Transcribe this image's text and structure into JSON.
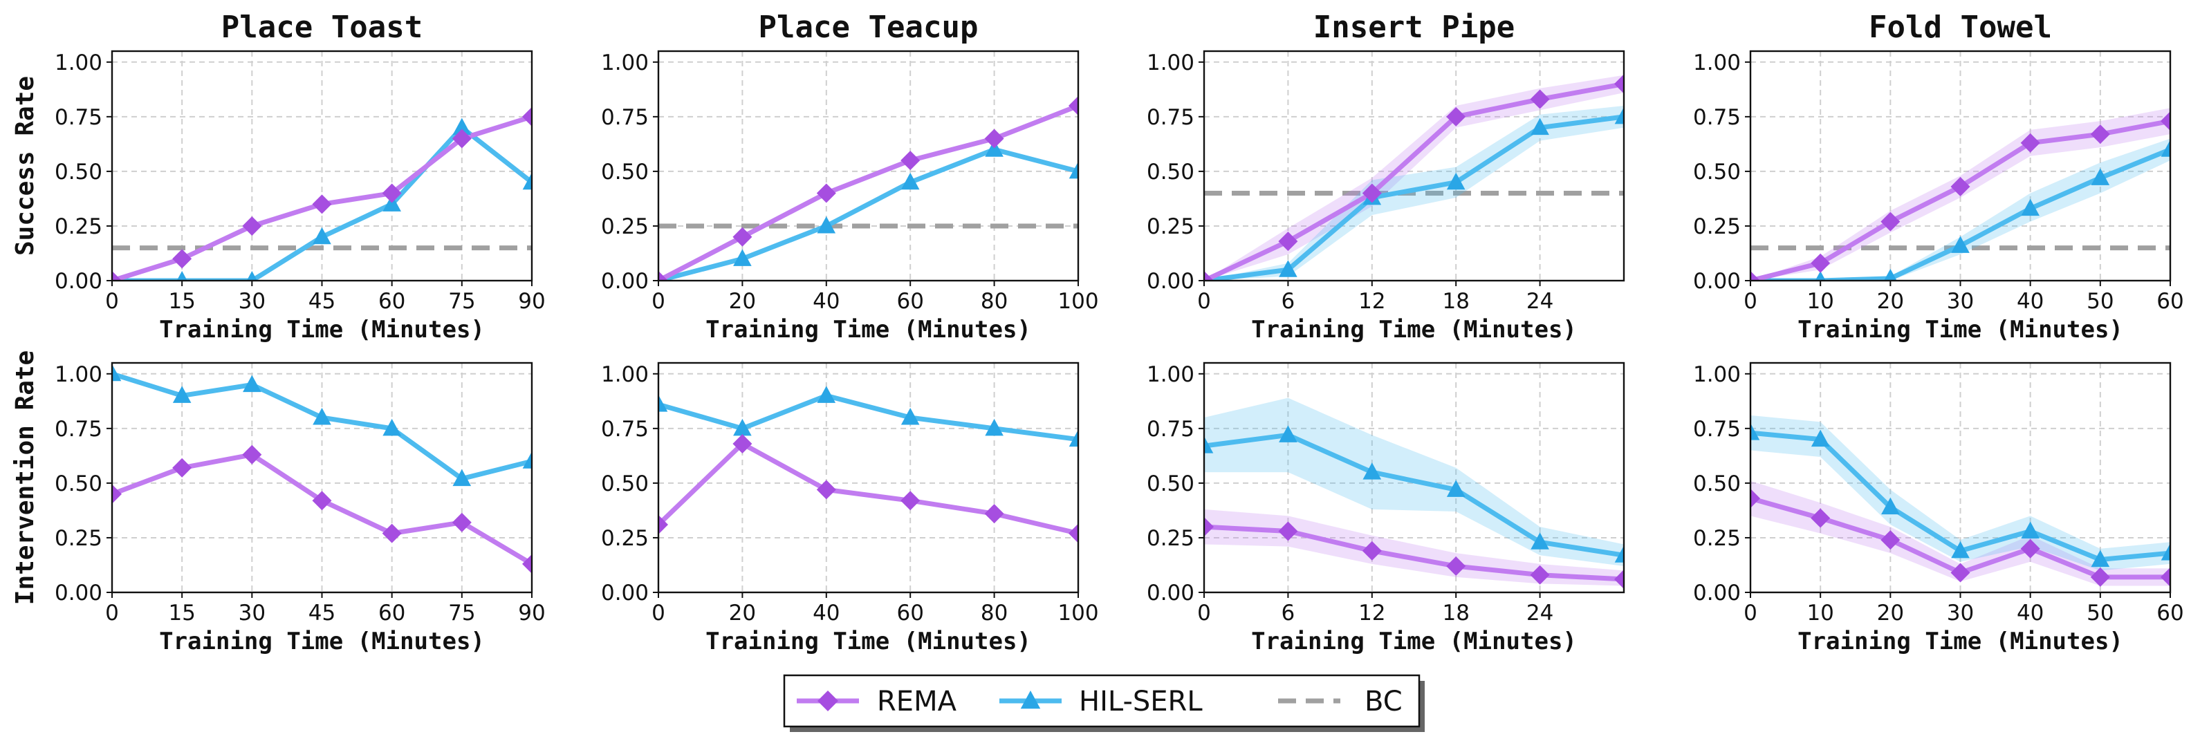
{
  "colors": {
    "REMA": "#c17cf0",
    "REMA_marker": "#a64ee0",
    "HIL-SERL": "#4dbbef",
    "HIL-SERL_marker": "#2aa6e6",
    "BC": "#a0a0a0"
  },
  "legend": [
    {
      "label": "REMA",
      "marker": "diamond"
    },
    {
      "label": "HIL-SERL",
      "marker": "triangle"
    },
    {
      "label": "BC",
      "marker": "dashed-line"
    }
  ],
  "chart_data": [
    {
      "type": "line",
      "title": "Place Toast",
      "xlabel": "Training Time (Minutes)",
      "ylabel": "Success Rate",
      "xlim": [
        0,
        90
      ],
      "xticks": [
        "0",
        "15",
        "30",
        "45",
        "60",
        "75",
        "90"
      ],
      "ylim": [
        0,
        1.05
      ],
      "yticks": [
        "0.00",
        "0.25",
        "0.50",
        "0.75",
        "1.00"
      ],
      "grid": true,
      "x": [
        0,
        15,
        30,
        45,
        60,
        75,
        90
      ],
      "series": [
        {
          "name": "REMA",
          "values": [
            0.0,
            0.1,
            0.25,
            0.35,
            0.4,
            0.65,
            0.75
          ]
        },
        {
          "name": "HIL-SERL",
          "values": [
            0.0,
            0.0,
            0.0,
            0.2,
            0.35,
            0.7,
            0.45
          ]
        },
        {
          "name": "BC",
          "baseline": 0.15
        }
      ]
    },
    {
      "type": "line",
      "title": "Place Teacup",
      "xlabel": "Training Time (Minutes)",
      "ylabel": "",
      "xlim": [
        0,
        100
      ],
      "xticks": [
        "0",
        "20",
        "40",
        "60",
        "80",
        "100"
      ],
      "ylim": [
        0,
        1.05
      ],
      "yticks": [
        "0.00",
        "0.25",
        "0.50",
        "0.75",
        "1.00"
      ],
      "grid": true,
      "x": [
        0,
        20,
        40,
        60,
        80,
        100
      ],
      "series": [
        {
          "name": "REMA",
          "values": [
            0.0,
            0.2,
            0.4,
            0.55,
            0.65,
            0.8
          ]
        },
        {
          "name": "HIL-SERL",
          "values": [
            0.0,
            0.1,
            0.25,
            0.45,
            0.6,
            0.5
          ]
        },
        {
          "name": "BC",
          "baseline": 0.25
        }
      ]
    },
    {
      "type": "line",
      "title": "Insert Pipe",
      "xlabel": "Training Time (Minutes)",
      "ylabel": "",
      "xlim": [
        0,
        30
      ],
      "xticks": [
        "0",
        "6",
        "12",
        "18",
        "24"
      ],
      "ylim": [
        0,
        1.05
      ],
      "yticks": [
        "0.00",
        "0.25",
        "0.50",
        "0.75",
        "1.00"
      ],
      "grid": true,
      "x": [
        0,
        6,
        12,
        18,
        24,
        30
      ],
      "series": [
        {
          "name": "REMA",
          "values": [
            0.0,
            0.18,
            0.4,
            0.75,
            0.83,
            0.9
          ],
          "lower": [
            0.0,
            0.12,
            0.34,
            0.7,
            0.78,
            0.86
          ],
          "upper": [
            0.0,
            0.24,
            0.47,
            0.8,
            0.88,
            0.94
          ]
        },
        {
          "name": "HIL-SERL",
          "values": [
            0.0,
            0.05,
            0.38,
            0.45,
            0.7,
            0.75
          ],
          "lower": [
            0.0,
            0.02,
            0.3,
            0.38,
            0.64,
            0.7
          ],
          "upper": [
            0.0,
            0.08,
            0.46,
            0.52,
            0.76,
            0.8
          ]
        },
        {
          "name": "BC",
          "baseline": 0.4
        }
      ]
    },
    {
      "type": "line",
      "title": "Fold Towel",
      "xlabel": "Training Time (Minutes)",
      "ylabel": "",
      "xlim": [
        0,
        60
      ],
      "xticks": [
        "0",
        "10",
        "20",
        "30",
        "40",
        "50",
        "60"
      ],
      "ylim": [
        0,
        1.05
      ],
      "yticks": [
        "0.00",
        "0.25",
        "0.50",
        "0.75",
        "1.00"
      ],
      "grid": true,
      "x": [
        0,
        10,
        20,
        30,
        40,
        50,
        60
      ],
      "series": [
        {
          "name": "REMA",
          "values": [
            0.0,
            0.08,
            0.27,
            0.43,
            0.63,
            0.67,
            0.73
          ],
          "lower": [
            0.0,
            0.05,
            0.22,
            0.38,
            0.57,
            0.61,
            0.67
          ],
          "upper": [
            0.0,
            0.11,
            0.32,
            0.48,
            0.69,
            0.73,
            0.79
          ]
        },
        {
          "name": "HIL-SERL",
          "values": [
            0.0,
            0.0,
            0.01,
            0.16,
            0.33,
            0.47,
            0.6
          ],
          "lower": [
            0.0,
            0.0,
            0.0,
            0.12,
            0.27,
            0.4,
            0.55
          ],
          "upper": [
            0.0,
            0.0,
            0.02,
            0.2,
            0.4,
            0.54,
            0.65
          ]
        },
        {
          "name": "BC",
          "baseline": 0.15
        }
      ]
    },
    {
      "type": "line",
      "title": "",
      "xlabel": "Training Time (Minutes)",
      "ylabel": "Intervention Rate",
      "xlim": [
        0,
        90
      ],
      "xticks": [
        "0",
        "15",
        "30",
        "45",
        "60",
        "75",
        "90"
      ],
      "ylim": [
        0,
        1.05
      ],
      "yticks": [
        "0.00",
        "0.25",
        "0.50",
        "0.75",
        "1.00"
      ],
      "grid": true,
      "x": [
        0,
        15,
        30,
        45,
        60,
        75,
        90
      ],
      "series": [
        {
          "name": "REMA",
          "values": [
            0.45,
            0.57,
            0.63,
            0.42,
            0.27,
            0.32,
            0.13
          ]
        },
        {
          "name": "HIL-SERL",
          "values": [
            1.0,
            0.9,
            0.95,
            0.8,
            0.75,
            0.52,
            0.6
          ]
        }
      ]
    },
    {
      "type": "line",
      "title": "",
      "xlabel": "Training Time (Minutes)",
      "ylabel": "",
      "xlim": [
        0,
        100
      ],
      "xticks": [
        "0",
        "20",
        "40",
        "60",
        "80",
        "100"
      ],
      "ylim": [
        0,
        1.05
      ],
      "yticks": [
        "0.00",
        "0.25",
        "0.50",
        "0.75",
        "1.00"
      ],
      "grid": true,
      "x": [
        0,
        20,
        40,
        60,
        80,
        100
      ],
      "series": [
        {
          "name": "REMA",
          "values": [
            0.31,
            0.68,
            0.47,
            0.42,
            0.36,
            0.27
          ]
        },
        {
          "name": "HIL-SERL",
          "values": [
            0.86,
            0.75,
            0.9,
            0.8,
            0.75,
            0.7
          ]
        }
      ]
    },
    {
      "type": "line",
      "title": "",
      "xlabel": "Training Time (Minutes)",
      "ylabel": "",
      "xlim": [
        0,
        30
      ],
      "xticks": [
        "0",
        "6",
        "12",
        "18",
        "24"
      ],
      "ylim": [
        0,
        1.05
      ],
      "yticks": [
        "0.00",
        "0.25",
        "0.50",
        "0.75",
        "1.00"
      ],
      "grid": true,
      "x": [
        0,
        6,
        12,
        18,
        24,
        30
      ],
      "series": [
        {
          "name": "REMA",
          "values": [
            0.3,
            0.28,
            0.19,
            0.12,
            0.08,
            0.06
          ],
          "lower": [
            0.22,
            0.21,
            0.13,
            0.07,
            0.04,
            0.03
          ],
          "upper": [
            0.38,
            0.35,
            0.26,
            0.18,
            0.13,
            0.1
          ]
        },
        {
          "name": "HIL-SERL",
          "values": [
            0.67,
            0.72,
            0.55,
            0.47,
            0.23,
            0.17
          ],
          "lower": [
            0.55,
            0.55,
            0.38,
            0.37,
            0.17,
            0.12
          ],
          "upper": [
            0.8,
            0.89,
            0.72,
            0.57,
            0.3,
            0.22
          ]
        }
      ]
    },
    {
      "type": "line",
      "title": "",
      "xlabel": "Training Time (Minutes)",
      "ylabel": "",
      "xlim": [
        0,
        60
      ],
      "xticks": [
        "0",
        "10",
        "20",
        "30",
        "40",
        "50",
        "60"
      ],
      "ylim": [
        0,
        1.05
      ],
      "yticks": [
        "0.00",
        "0.25",
        "0.50",
        "0.75",
        "1.00"
      ],
      "grid": true,
      "x": [
        0,
        10,
        20,
        30,
        40,
        50,
        60
      ],
      "series": [
        {
          "name": "REMA",
          "values": [
            0.43,
            0.34,
            0.24,
            0.09,
            0.2,
            0.07,
            0.07
          ],
          "lower": [
            0.35,
            0.27,
            0.18,
            0.05,
            0.14,
            0.03,
            0.03
          ],
          "upper": [
            0.51,
            0.41,
            0.3,
            0.13,
            0.26,
            0.11,
            0.11
          ]
        },
        {
          "name": "HIL-SERL",
          "values": [
            0.73,
            0.7,
            0.39,
            0.19,
            0.28,
            0.15,
            0.18
          ],
          "lower": [
            0.65,
            0.62,
            0.31,
            0.14,
            0.21,
            0.1,
            0.13
          ],
          "upper": [
            0.81,
            0.78,
            0.47,
            0.24,
            0.35,
            0.2,
            0.23
          ]
        }
      ]
    }
  ]
}
